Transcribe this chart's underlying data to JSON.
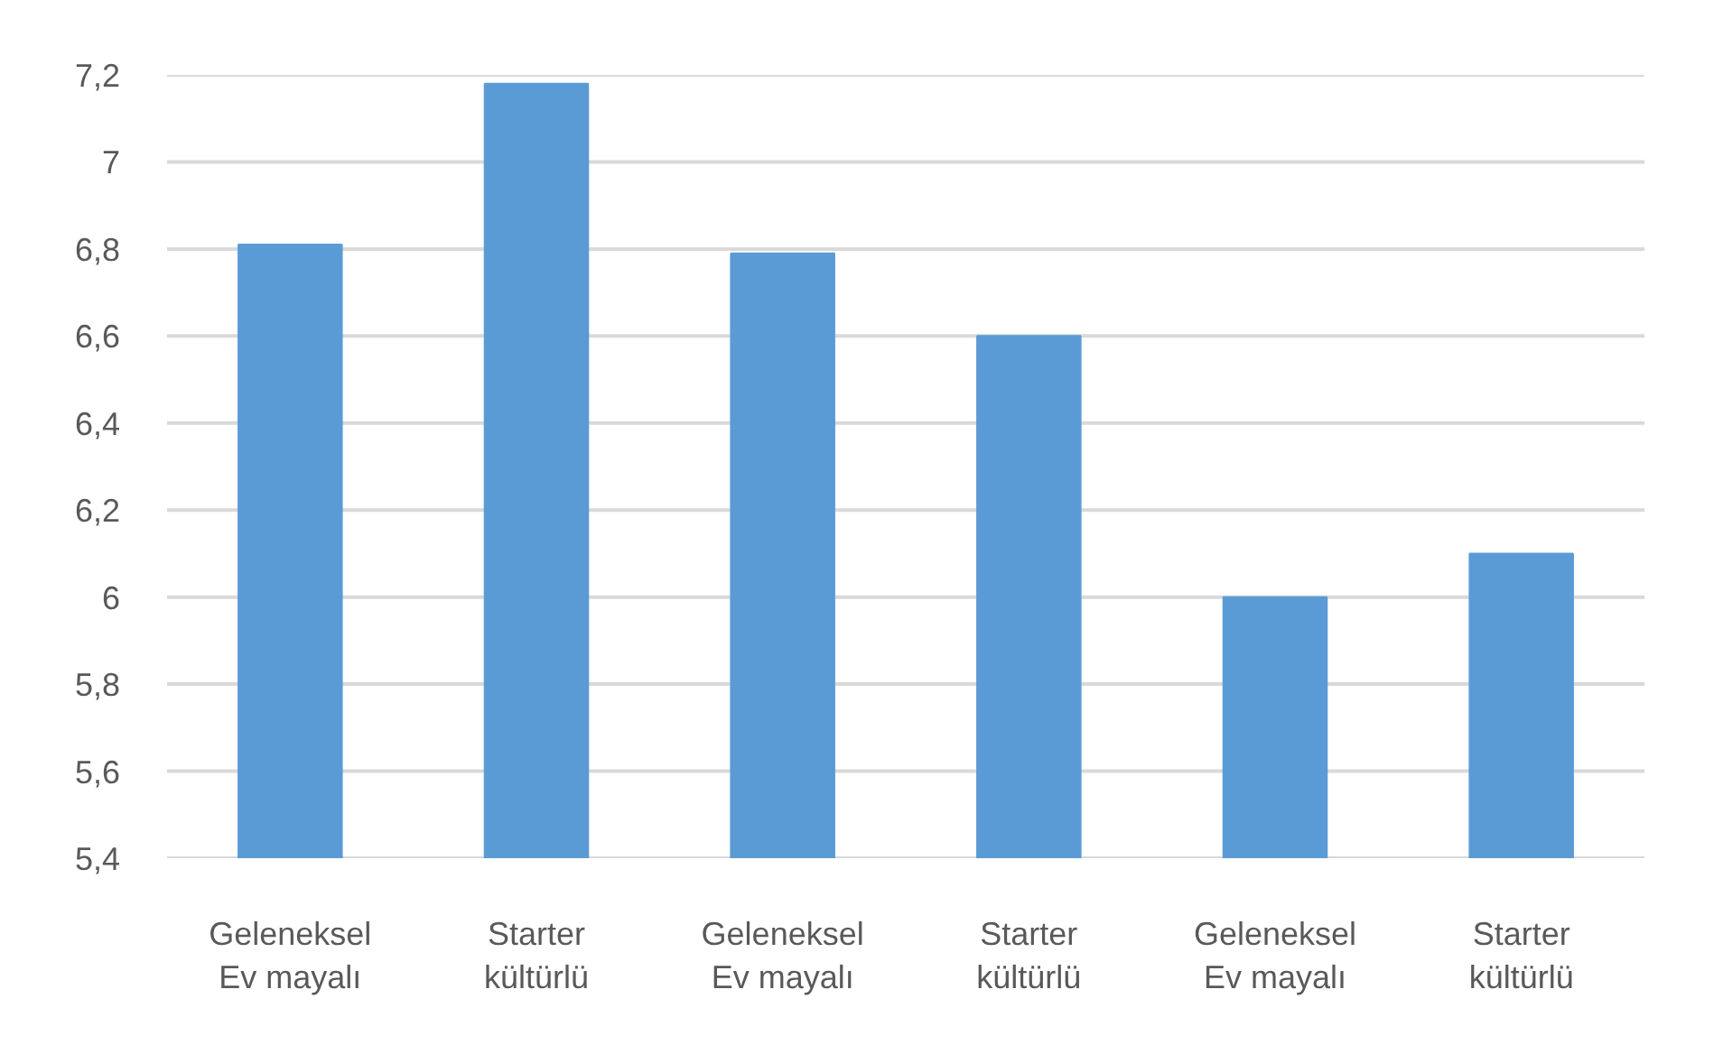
{
  "chart_data": {
    "type": "bar",
    "categories": [
      "Geleneksel\nEv mayalı",
      "Starter\nkültürlü",
      "Geleneksel\nEv mayalı",
      "Starter\nkültürlü",
      "Geleneksel\nEv mayalı",
      "Starter\nkültürlü"
    ],
    "values": [
      6.81,
      7.18,
      6.79,
      6.6,
      6.0,
      6.1
    ],
    "color": "#5b9bd5",
    "ylim": [
      5.4,
      7.2
    ],
    "yticks": [
      {
        "value": 5.4,
        "label": "5,4"
      },
      {
        "value": 5.6,
        "label": "5,6"
      },
      {
        "value": 5.8,
        "label": "5,8"
      },
      6,
      {
        "value": 6.2,
        "label": "6,2"
      },
      {
        "value": 6.4,
        "label": "6,4"
      },
      {
        "value": 6.6,
        "label": "6,6"
      },
      {
        "value": 6.8,
        "label": "6,8"
      },
      7,
      {
        "value": 7.2,
        "label": "7,2"
      }
    ],
    "grid": "y"
  }
}
